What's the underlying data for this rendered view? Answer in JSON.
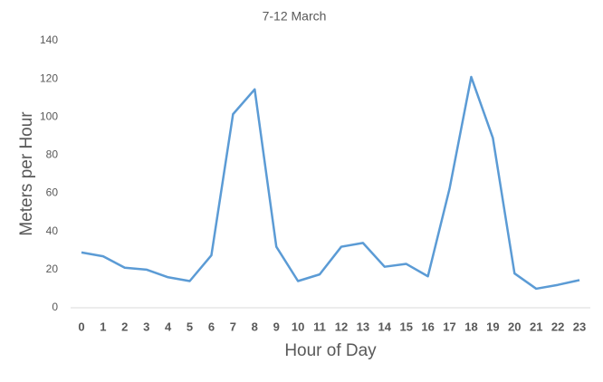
{
  "chart_data": {
    "type": "line",
    "title": "7-12 March",
    "x_label": "Hour of Day",
    "y_label": "Meters per Hour",
    "categories": [
      "0",
      "1",
      "2",
      "3",
      "4",
      "5",
      "6",
      "7",
      "8",
      "9",
      "10",
      "11",
      "12",
      "13",
      "14",
      "15",
      "16",
      "17",
      "18",
      "19",
      "20",
      "21",
      "22",
      "23"
    ],
    "series": [
      {
        "name": "Meters per Hour",
        "color": "#5b9bd5",
        "values": [
          29,
          27,
          21,
          20,
          16,
          14,
          27.5,
          101.5,
          114.5,
          32,
          14,
          17.5,
          32,
          34,
          21.5,
          23,
          16.5,
          62.5,
          121,
          89,
          18,
          10,
          12,
          14.5
        ]
      }
    ],
    "ylim": [
      0,
      140
    ],
    "yticks": [
      0,
      20,
      40,
      60,
      80,
      100,
      120,
      140
    ],
    "grid": false,
    "legend": false
  }
}
